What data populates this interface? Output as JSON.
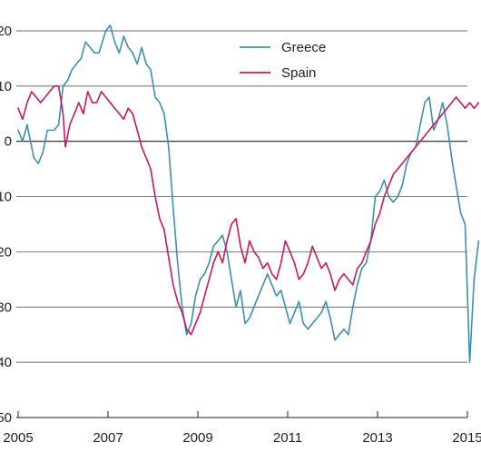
{
  "chart_data": {
    "type": "line",
    "title": "",
    "xlabel": "",
    "ylabel": "",
    "xlim": [
      2005,
      2015
    ],
    "ylim": [
      -50,
      20
    ],
    "x_ticks": [
      2005,
      2007,
      2009,
      2011,
      2013,
      2015
    ],
    "x_tick_labels": [
      "2005",
      "2007",
      "2009",
      "2011",
      "2013",
      "2015"
    ],
    "y_ticks": [
      20,
      10,
      0,
      -10,
      -20,
      -30,
      -40,
      -50
    ],
    "y_tick_labels": [
      "20",
      "10",
      "0",
      "10",
      "20",
      "30",
      "40",
      "50"
    ],
    "grid": "horizontal",
    "legend_position": "top-center",
    "series": [
      {
        "name": "Greece",
        "color": "#3b8fb3",
        "points": [
          [
            2005.0,
            2
          ],
          [
            2005.1,
            0
          ],
          [
            2005.2,
            3
          ],
          [
            2005.35,
            -3
          ],
          [
            2005.45,
            -4
          ],
          [
            2005.55,
            -2
          ],
          [
            2005.65,
            2
          ],
          [
            2005.8,
            2
          ],
          [
            2005.9,
            3
          ],
          [
            2006.0,
            10
          ],
          [
            2006.1,
            11
          ],
          [
            2006.2,
            13
          ],
          [
            2006.3,
            14
          ],
          [
            2006.4,
            15
          ],
          [
            2006.5,
            18
          ],
          [
            2006.6,
            17
          ],
          [
            2006.7,
            16
          ],
          [
            2006.8,
            16
          ],
          [
            2006.95,
            20
          ],
          [
            2007.05,
            21
          ],
          [
            2007.15,
            18
          ],
          [
            2007.25,
            16
          ],
          [
            2007.35,
            19
          ],
          [
            2007.45,
            17
          ],
          [
            2007.55,
            16
          ],
          [
            2007.65,
            14
          ],
          [
            2007.75,
            17
          ],
          [
            2007.85,
            14
          ],
          [
            2007.95,
            13
          ],
          [
            2008.05,
            8
          ],
          [
            2008.15,
            7
          ],
          [
            2008.25,
            5
          ],
          [
            2008.35,
            -1
          ],
          [
            2008.45,
            -12
          ],
          [
            2008.55,
            -22
          ],
          [
            2008.65,
            -30
          ],
          [
            2008.75,
            -35
          ],
          [
            2008.85,
            -33
          ],
          [
            2008.95,
            -28
          ],
          [
            2009.05,
            -25
          ],
          [
            2009.15,
            -24
          ],
          [
            2009.25,
            -22
          ],
          [
            2009.35,
            -19
          ],
          [
            2009.45,
            -18
          ],
          [
            2009.55,
            -17
          ],
          [
            2009.65,
            -20
          ],
          [
            2009.75,
            -25
          ],
          [
            2009.85,
            -30
          ],
          [
            2009.95,
            -27
          ],
          [
            2010.05,
            -33
          ],
          [
            2010.15,
            -32
          ],
          [
            2010.25,
            -30
          ],
          [
            2010.35,
            -28
          ],
          [
            2010.45,
            -26
          ],
          [
            2010.55,
            -24
          ],
          [
            2010.65,
            -26
          ],
          [
            2010.75,
            -28
          ],
          [
            2010.85,
            -27
          ],
          [
            2010.95,
            -30
          ],
          [
            2011.05,
            -33
          ],
          [
            2011.15,
            -31
          ],
          [
            2011.25,
            -29
          ],
          [
            2011.35,
            -33
          ],
          [
            2011.45,
            -34
          ],
          [
            2011.55,
            -33
          ],
          [
            2011.65,
            -32
          ],
          [
            2011.75,
            -31
          ],
          [
            2011.85,
            -29
          ],
          [
            2011.95,
            -32
          ],
          [
            2012.05,
            -36
          ],
          [
            2012.15,
            -35
          ],
          [
            2012.25,
            -34
          ],
          [
            2012.35,
            -35
          ],
          [
            2012.45,
            -30
          ],
          [
            2012.55,
            -26
          ],
          [
            2012.65,
            -23
          ],
          [
            2012.75,
            -22
          ],
          [
            2012.85,
            -18
          ],
          [
            2012.95,
            -10
          ],
          [
            2013.05,
            -9
          ],
          [
            2013.15,
            -7
          ],
          [
            2013.25,
            -10
          ],
          [
            2013.35,
            -11
          ],
          [
            2013.45,
            -10
          ],
          [
            2013.55,
            -8
          ],
          [
            2013.65,
            -4
          ],
          [
            2013.75,
            -2
          ],
          [
            2013.85,
            -1
          ],
          [
            2013.95,
            3
          ],
          [
            2014.05,
            7
          ],
          [
            2014.15,
            8
          ],
          [
            2014.25,
            2
          ],
          [
            2014.35,
            4
          ],
          [
            2014.45,
            7
          ],
          [
            2014.55,
            3
          ],
          [
            2014.65,
            -3
          ],
          [
            2014.75,
            -8
          ],
          [
            2014.85,
            -13
          ],
          [
            2014.95,
            -15
          ],
          [
            2015.05,
            -40
          ],
          [
            2015.15,
            -25
          ],
          [
            2015.25,
            -18
          ]
        ]
      },
      {
        "name": "Spain",
        "color": "#c8175f",
        "points": [
          [
            2005.0,
            6
          ],
          [
            2005.1,
            4
          ],
          [
            2005.2,
            7
          ],
          [
            2005.3,
            9
          ],
          [
            2005.4,
            8
          ],
          [
            2005.5,
            7
          ],
          [
            2005.6,
            8
          ],
          [
            2005.7,
            9
          ],
          [
            2005.8,
            10
          ],
          [
            2005.9,
            10
          ],
          [
            2006.0,
            5
          ],
          [
            2006.05,
            -1
          ],
          [
            2006.15,
            3
          ],
          [
            2006.25,
            5
          ],
          [
            2006.35,
            7
          ],
          [
            2006.45,
            5
          ],
          [
            2006.55,
            9
          ],
          [
            2006.65,
            7
          ],
          [
            2006.75,
            7
          ],
          [
            2006.85,
            9
          ],
          [
            2006.95,
            8
          ],
          [
            2007.05,
            7
          ],
          [
            2007.15,
            6
          ],
          [
            2007.25,
            5
          ],
          [
            2007.35,
            4
          ],
          [
            2007.45,
            6
          ],
          [
            2007.55,
            5
          ],
          [
            2007.65,
            2
          ],
          [
            2007.75,
            -1
          ],
          [
            2007.85,
            -3
          ],
          [
            2007.95,
            -5
          ],
          [
            2008.05,
            -10
          ],
          [
            2008.15,
            -14
          ],
          [
            2008.25,
            -16
          ],
          [
            2008.35,
            -21
          ],
          [
            2008.45,
            -26
          ],
          [
            2008.55,
            -29
          ],
          [
            2008.65,
            -31
          ],
          [
            2008.75,
            -34
          ],
          [
            2008.85,
            -35
          ],
          [
            2008.95,
            -33
          ],
          [
            2009.05,
            -31
          ],
          [
            2009.15,
            -28
          ],
          [
            2009.25,
            -25
          ],
          [
            2009.35,
            -22
          ],
          [
            2009.45,
            -20
          ],
          [
            2009.55,
            -22
          ],
          [
            2009.65,
            -18
          ],
          [
            2009.75,
            -15
          ],
          [
            2009.85,
            -14
          ],
          [
            2009.95,
            -19
          ],
          [
            2010.05,
            -22
          ],
          [
            2010.15,
            -18
          ],
          [
            2010.25,
            -20
          ],
          [
            2010.35,
            -21
          ],
          [
            2010.45,
            -23
          ],
          [
            2010.55,
            -22
          ],
          [
            2010.65,
            -24
          ],
          [
            2010.75,
            -25
          ],
          [
            2010.85,
            -22
          ],
          [
            2010.95,
            -18
          ],
          [
            2011.05,
            -20
          ],
          [
            2011.15,
            -22
          ],
          [
            2011.25,
            -25
          ],
          [
            2011.35,
            -24
          ],
          [
            2011.45,
            -22
          ],
          [
            2011.55,
            -19
          ],
          [
            2011.65,
            -21
          ],
          [
            2011.75,
            -23
          ],
          [
            2011.85,
            -22
          ],
          [
            2011.95,
            -24
          ],
          [
            2012.05,
            -27
          ],
          [
            2012.15,
            -25
          ],
          [
            2012.25,
            -24
          ],
          [
            2012.35,
            -25
          ],
          [
            2012.45,
            -26
          ],
          [
            2012.55,
            -23
          ],
          [
            2012.65,
            -22
          ],
          [
            2012.75,
            -20
          ],
          [
            2012.85,
            -18
          ],
          [
            2012.95,
            -15
          ],
          [
            2013.05,
            -13
          ],
          [
            2013.15,
            -10
          ],
          [
            2013.25,
            -8
          ],
          [
            2013.35,
            -6
          ],
          [
            2013.45,
            -5
          ],
          [
            2013.55,
            -4
          ],
          [
            2013.65,
            -3
          ],
          [
            2013.75,
            -2
          ],
          [
            2013.85,
            -1
          ],
          [
            2013.95,
            0
          ],
          [
            2014.05,
            1
          ],
          [
            2014.15,
            2
          ],
          [
            2014.25,
            3
          ],
          [
            2014.35,
            4
          ],
          [
            2014.45,
            5
          ],
          [
            2014.55,
            6
          ],
          [
            2014.65,
            7
          ],
          [
            2014.75,
            8
          ],
          [
            2014.85,
            7
          ],
          [
            2014.95,
            6
          ],
          [
            2015.05,
            7
          ],
          [
            2015.15,
            6
          ],
          [
            2015.25,
            7
          ]
        ]
      }
    ]
  }
}
